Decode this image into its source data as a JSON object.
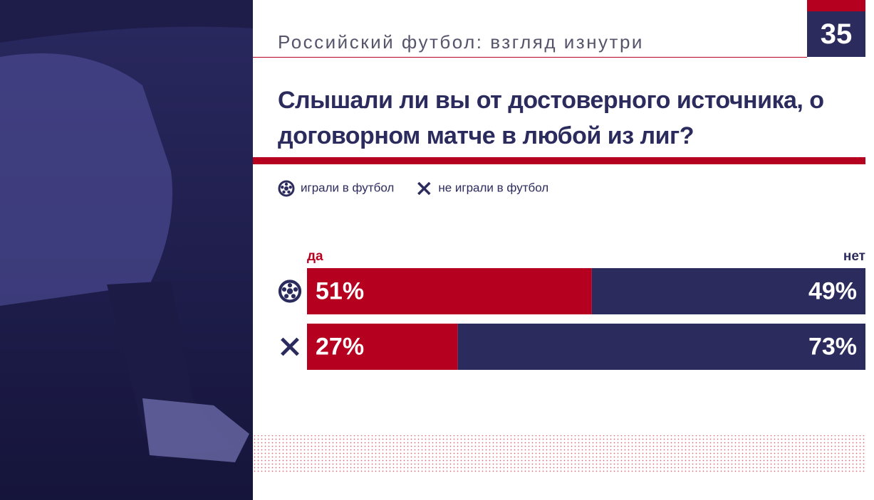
{
  "header": {
    "title": "Российский футбол: взгляд изнутри",
    "page": "35"
  },
  "chart_data": {
    "type": "bar",
    "orientation": "horizontal",
    "stacked": true,
    "title": "Слышали ли вы от достоверного источника, о договорном матче в любой из лиг?",
    "categories": [
      "играли в футбол",
      "не играли в футбол"
    ],
    "series": [
      {
        "name": "да",
        "color": "#b5001f",
        "values": [
          51,
          27
        ],
        "value_labels": [
          "51%",
          "27%"
        ]
      },
      {
        "name": "нет",
        "color": "#2c2b5e",
        "values": [
          49,
          73
        ],
        "value_labels": [
          "49%",
          "73%"
        ]
      }
    ],
    "xlim": [
      0,
      100
    ]
  }
}
